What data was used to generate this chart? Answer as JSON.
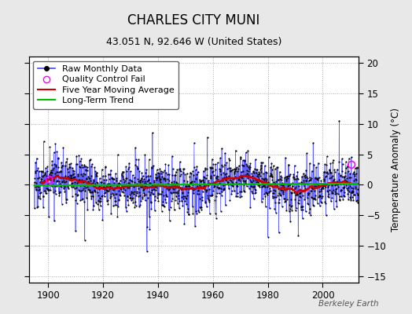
{
  "title": "CHARLES CITY MUNI",
  "subtitle": "43.051 N, 92.646 W (United States)",
  "ylabel": "Temperature Anomaly (°C)",
  "watermark": "Berkeley Earth",
  "ylim": [
    -16,
    21
  ],
  "xlim": [
    1893,
    2013
  ],
  "yticks": [
    -15,
    -10,
    -5,
    0,
    5,
    10,
    15,
    20
  ],
  "xticks": [
    1900,
    1920,
    1940,
    1960,
    1980,
    2000
  ],
  "x_start": 1895,
  "x_end": 2012,
  "seed": 17,
  "bg_color": "#e8e8e8",
  "plot_bg": "#ffffff",
  "raw_line_color": "#4444ff",
  "raw_dot_color": "#000000",
  "qc_color": "#ff00ff",
  "moving_avg_color": "#cc0000",
  "trend_color": "#00bb00",
  "legend_fontsize": 8,
  "title_fontsize": 12,
  "subtitle_fontsize": 9,
  "noise_std": 2.0,
  "n_spikes": 8,
  "spike_magnitude": 6.0
}
